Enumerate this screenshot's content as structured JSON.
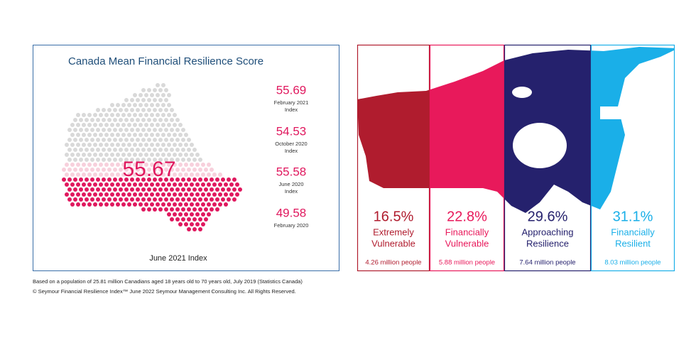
{
  "left_panel": {
    "title": "Canada Mean Financial Resilience Score",
    "main_score": "55.67",
    "caption": "June 2021 Index",
    "history": [
      {
        "value": "55.69",
        "label": [
          "February 2021",
          "Index"
        ]
      },
      {
        "value": "54.53",
        "label": [
          "October 2020",
          "Index"
        ]
      },
      {
        "value": "55.58",
        "label": [
          "June 2020",
          "Index"
        ]
      },
      {
        "value": "49.58",
        "label": [
          "February 2020"
        ]
      }
    ]
  },
  "footnotes": [
    "Based on a population of 25.81 million Canadians aged 18 years old to 70 years old, July 2019 (Statistics Canada)",
    "© Seymour Financial Resilience Index™ June 2022 Seymour Management Consulting Inc. All Rights Reserved."
  ],
  "segments": [
    {
      "percent": "16.5%",
      "label": [
        "Extremely",
        "Vulnerable"
      ],
      "people": "4.26 million people",
      "color": "#b01c2e"
    },
    {
      "percent": "22.8%",
      "label": [
        "Financially",
        "Vulnerable"
      ],
      "people": "5.88 million people",
      "color": "#e8195b"
    },
    {
      "percent": "29.6%",
      "label": [
        "Approaching",
        "Resilience"
      ],
      "people": "7.64 million people",
      "color": "#25216d"
    },
    {
      "percent": "31.1%",
      "label": [
        "Financially",
        "Resilient"
      ],
      "people": "8.03 million people",
      "color": "#1aafe8"
    }
  ]
}
